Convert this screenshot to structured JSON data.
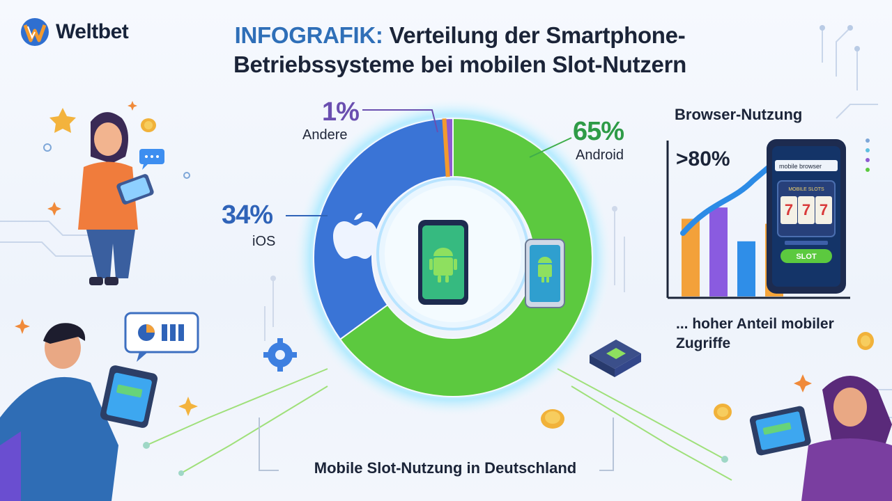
{
  "brand": {
    "name": "Weltbet"
  },
  "header": {
    "title_highlight": "INFOGRAFIK:",
    "title_rest": " Verteilung der Smartphone-Betriebssysteme bei mobilen Slot-Nutzern"
  },
  "chart_data": [
    {
      "type": "pie",
      "title": "",
      "categories": [
        "Android",
        "iOS",
        "Andere"
      ],
      "values": [
        65,
        34,
        1
      ],
      "labels": [
        "65%",
        "34%",
        "1%"
      ],
      "colors": [
        "#5cc93f",
        "#3a74d6",
        "#8e5bd0"
      ]
    },
    {
      "type": "bar",
      "title": "Browser-Nutzung",
      "annotation": ">80%",
      "values": [
        0.62,
        0.71,
        0.44,
        0.58
      ],
      "colors": [
        "#f3a13a",
        "#8a5be0",
        "#2f8ee8",
        "#f6a53a"
      ],
      "trend": "rising"
    }
  ],
  "labels": {
    "other_pct": "1%",
    "other_name": "Andere",
    "android_pct": "65%",
    "android_name": "Android",
    "ios_pct": "34%",
    "ios_name": "iOS"
  },
  "caption": "Mobile Slot-Nutzung in Deutschland",
  "panel": {
    "title": "Browser-Nutzung",
    "pct": ">80%",
    "note": "... hoher Anteil mobiler Zugriffe",
    "phone_url": "mobile browser",
    "phone_header": "MOBILE SLOTS",
    "reels": [
      "7",
      "7",
      "7"
    ],
    "slot_button": "SLOT"
  },
  "colors": {
    "accent": "#2f6fb8",
    "android": "#5cc93f",
    "ios": "#3a74d6",
    "other": "#8e5bd0"
  }
}
